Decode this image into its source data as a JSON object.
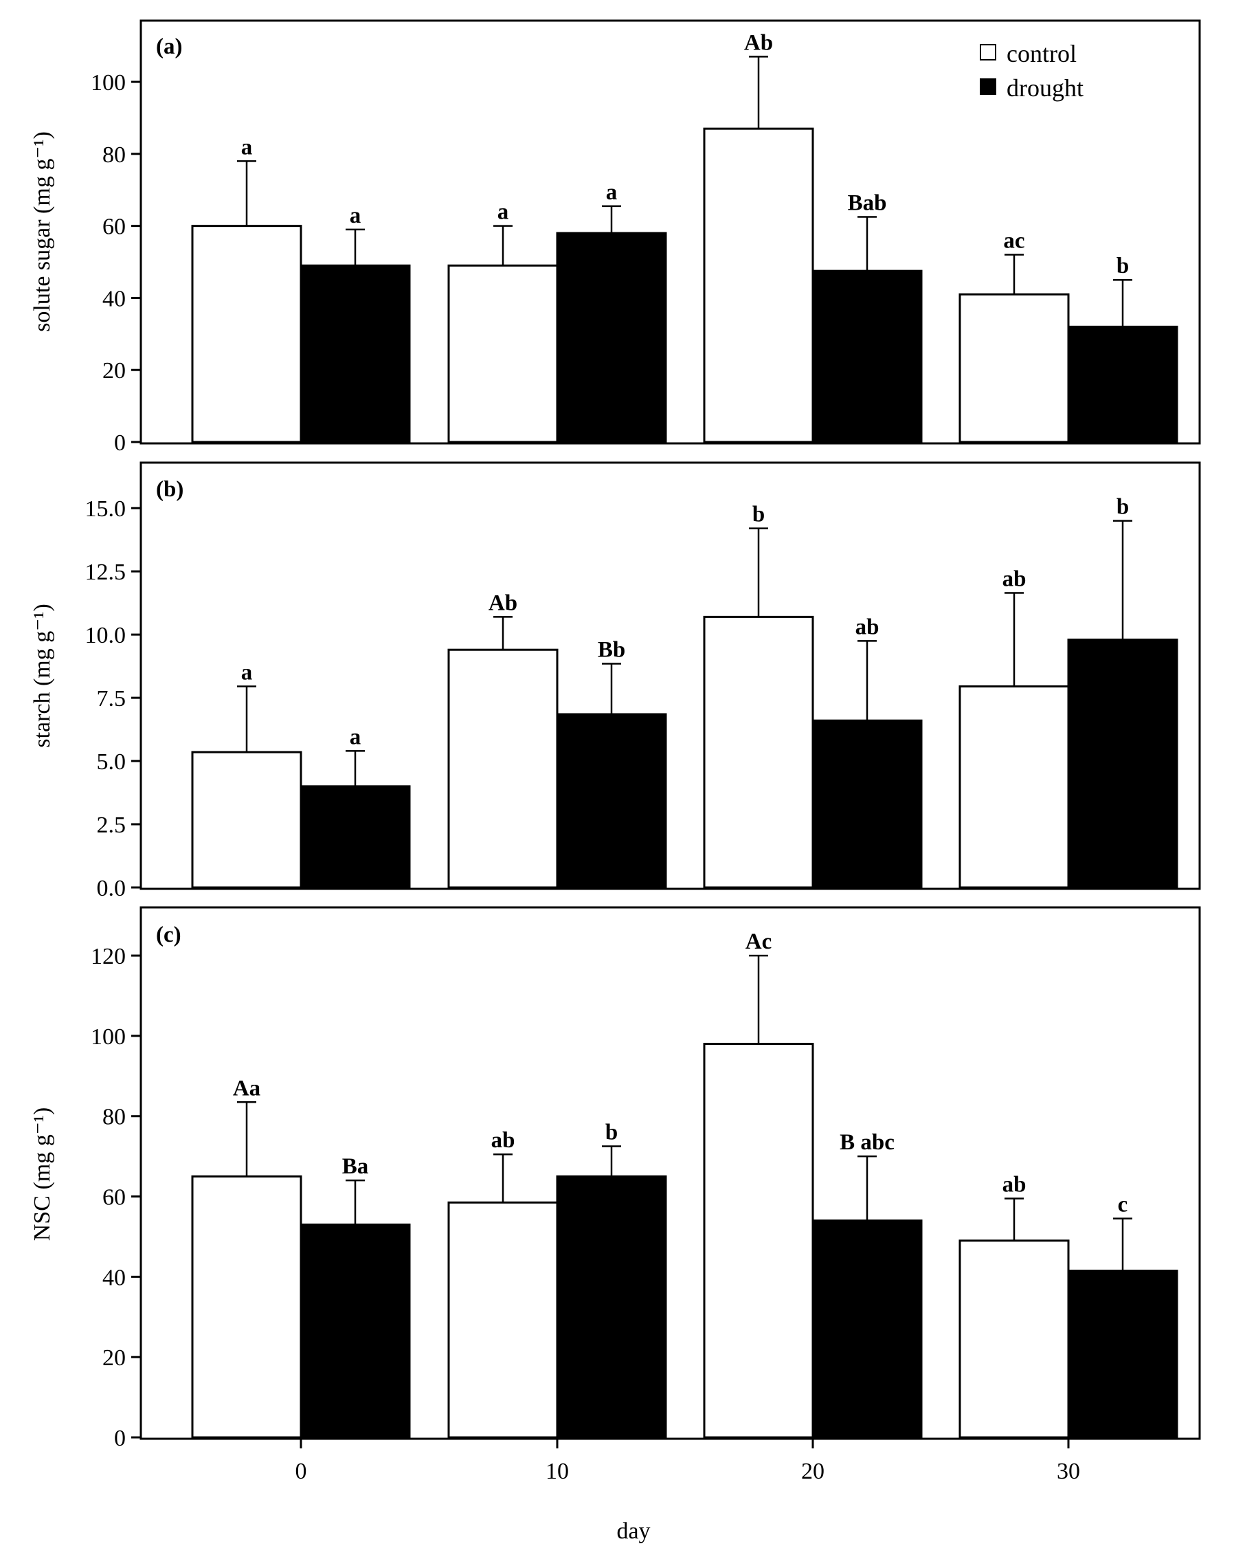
{
  "chart_data": [
    {
      "type": "bar",
      "panel_label": "(a)",
      "ylabel": "solute sugar (mg g⁻¹)",
      "xlabel": "",
      "ylim": [
        0,
        117
      ],
      "yticks": [
        0,
        20,
        40,
        60,
        80,
        100
      ],
      "ytick_labels": [
        "0",
        "20",
        "40",
        "60",
        "80",
        "100"
      ],
      "categories": [
        "0",
        "10",
        "20",
        "30"
      ],
      "legend": {
        "position": "top-right",
        "entries": [
          "control",
          "drought"
        ]
      },
      "series": [
        {
          "name": "control",
          "fill": "#ffffff",
          "values": [
            60,
            49,
            87,
            41
          ],
          "errors": [
            18,
            11,
            20,
            11
          ],
          "labels": [
            "a",
            "a",
            "Ab",
            "ac"
          ]
        },
        {
          "name": "drought",
          "fill": "#000000",
          "values": [
            49,
            58,
            47.5,
            32
          ],
          "errors": [
            10,
            7.5,
            15,
            13
          ],
          "labels": [
            "a",
            "a",
            "Bab",
            "b"
          ]
        }
      ]
    },
    {
      "type": "bar",
      "panel_label": "(b)",
      "ylabel": "starch (mg g⁻¹)",
      "xlabel": "",
      "ylim": [
        0,
        16.8
      ],
      "yticks": [
        0,
        2.5,
        5,
        7.5,
        10,
        12.5,
        15
      ],
      "ytick_labels": [
        "0.0",
        "2.5",
        "5.0",
        "7.5",
        "10.0",
        "12.5",
        "15.0"
      ],
      "categories": [
        "0",
        "10",
        "20",
        "30"
      ],
      "series": [
        {
          "name": "control",
          "fill": "#ffffff",
          "values": [
            5.35,
            9.4,
            10.7,
            7.95
          ],
          "errors": [
            2.6,
            1.3,
            3.5,
            3.7
          ],
          "labels": [
            "a",
            "Ab",
            "b",
            "ab"
          ]
        },
        {
          "name": "drought",
          "fill": "#000000",
          "values": [
            4,
            6.85,
            6.6,
            9.8
          ],
          "errors": [
            1.4,
            2.0,
            3.15,
            4.7
          ],
          "labels": [
            "a",
            "Bb",
            "ab",
            "b"
          ]
        }
      ]
    },
    {
      "type": "bar",
      "panel_label": "(c)",
      "ylabel": "NSC (mg g⁻¹)",
      "xlabel": "day",
      "ylim": [
        0,
        132
      ],
      "yticks": [
        0,
        20,
        40,
        60,
        80,
        100,
        120
      ],
      "ytick_labels": [
        "0",
        "20",
        "40",
        "60",
        "80",
        "100",
        "120"
      ],
      "categories": [
        "0",
        "10",
        "20",
        "30"
      ],
      "series": [
        {
          "name": "control",
          "fill": "#ffffff",
          "values": [
            65,
            58.5,
            98,
            49
          ],
          "errors": [
            18.5,
            12,
            22,
            10.5
          ],
          "labels": [
            "Aa",
            "ab",
            "Ac",
            "ab"
          ]
        },
        {
          "name": "drought",
          "fill": "#000000",
          "values": [
            53,
            65,
            54,
            41.5
          ],
          "errors": [
            11,
            7.5,
            16,
            13
          ],
          "labels": [
            "Ba",
            "b",
            "B abc",
            "c"
          ]
        }
      ]
    }
  ]
}
